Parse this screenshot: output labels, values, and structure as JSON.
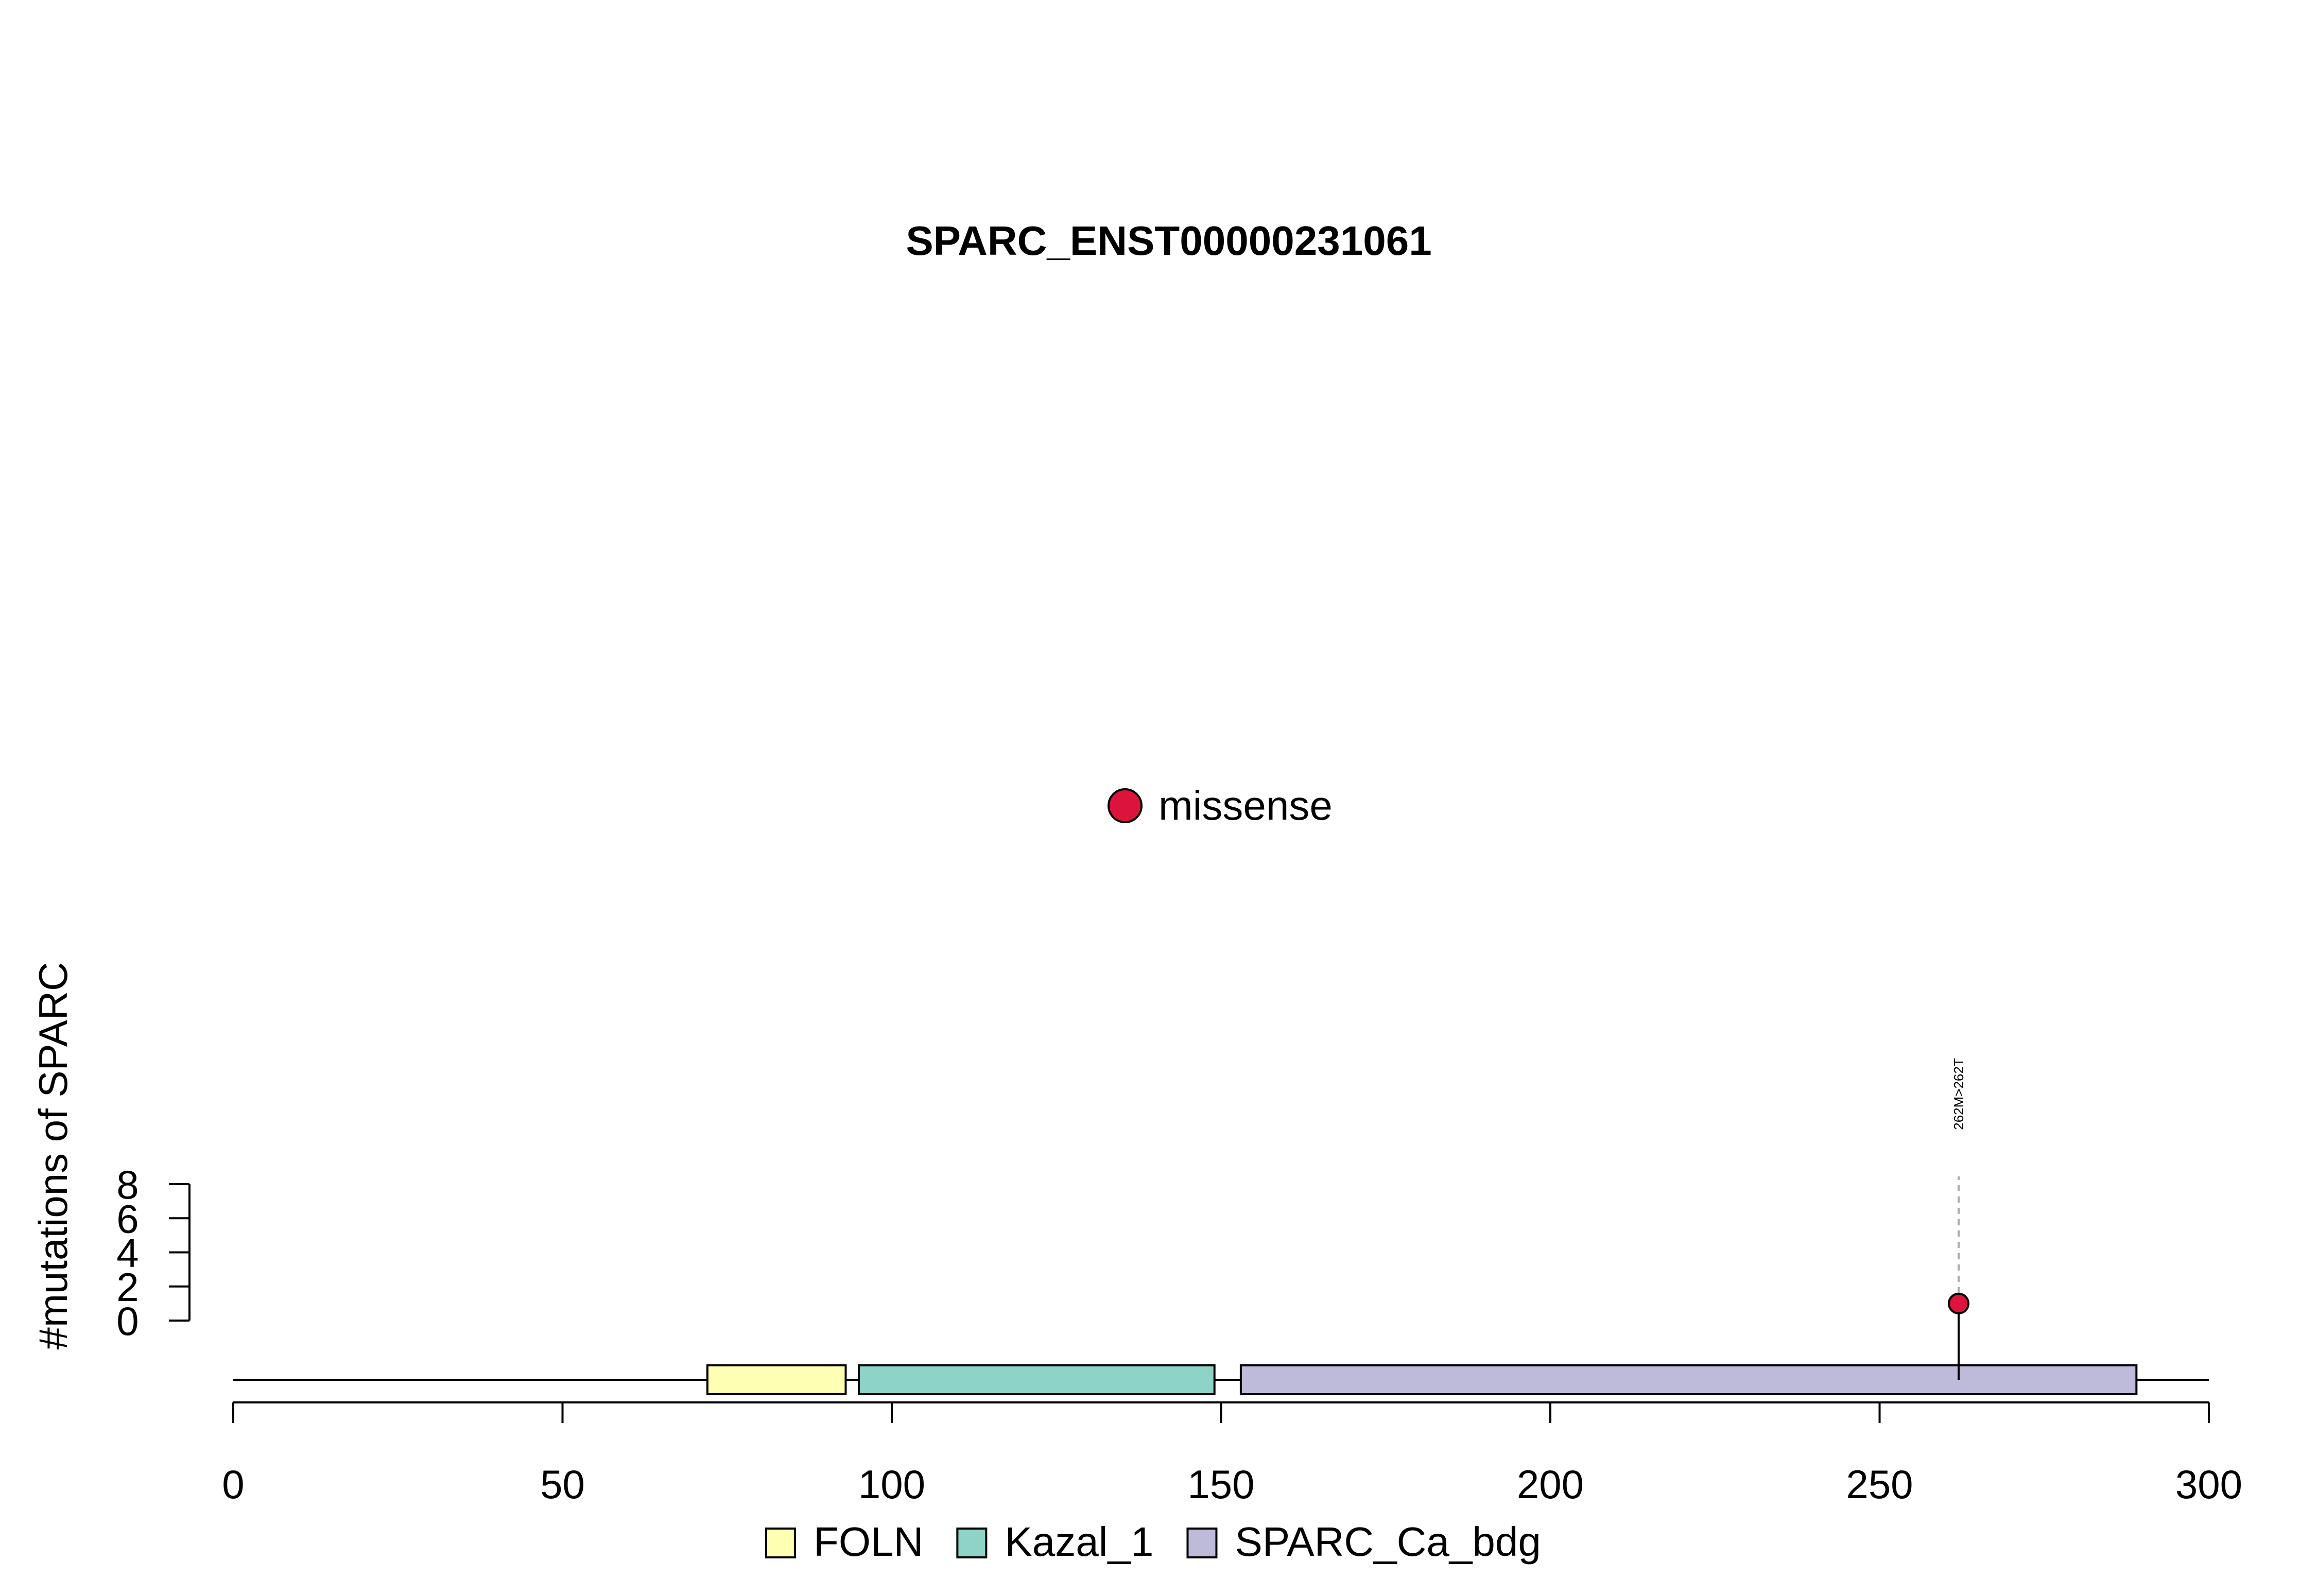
{
  "chart_data": {
    "type": "scatter",
    "title": "SPARC_ENST00000231061",
    "xlabel": "",
    "ylabel": "#mutations of SPARC",
    "xlim": [
      0,
      300
    ],
    "x_ticks": [
      "0",
      "50",
      "100",
      "150",
      "200",
      "250",
      "300"
    ],
    "ylim": [
      0,
      8
    ],
    "y_ticks": [
      "0",
      "2",
      "4",
      "6",
      "8"
    ],
    "protein_length": 300,
    "domains": [
      {
        "name": "FOLN",
        "start": 72,
        "end": 93,
        "color": "#FFFFB3"
      },
      {
        "name": "Kazal_1",
        "start": 95,
        "end": 149,
        "color": "#8DD3C7"
      },
      {
        "name": "SPARC_Ca_bdg",
        "start": 153,
        "end": 289,
        "color": "#BEBADA"
      }
    ],
    "series": [
      {
        "name": "missense",
        "color": "#DC143C",
        "points": [
          {
            "x": 262,
            "y": 1,
            "label": "262M>262T"
          }
        ]
      }
    ],
    "legend_position": "top-center",
    "domain_legend_position": "bottom-center",
    "grid": false
  }
}
